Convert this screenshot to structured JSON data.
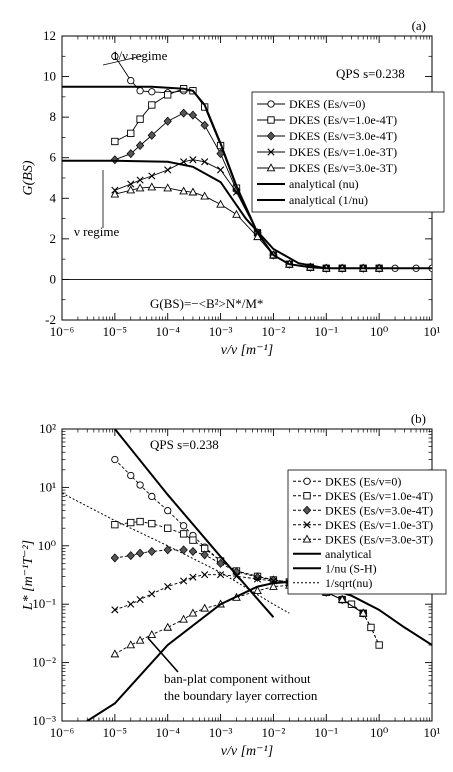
{
  "chart_data": [
    {
      "type": "line",
      "panel_label": "(a)",
      "xlabel": "ν/v [m⁻¹]",
      "ylabel": "G(BS)",
      "xscale": "log",
      "xlim": [
        1e-06,
        10
      ],
      "ylim": [
        -2,
        12
      ],
      "x_ticks": [
        "10⁻⁶",
        "10⁻⁵",
        "10⁻⁴",
        "10⁻³",
        "10⁻²",
        "10⁻¹",
        "10⁰",
        "10¹"
      ],
      "y_ticks": [
        "-2",
        "0",
        "2",
        "4",
        "6",
        "8",
        "10",
        "12"
      ],
      "annotations": [
        "QPS s=0.238",
        "1/ν regime",
        "ν regime",
        "G(BS)=−<B²>N*/M*"
      ],
      "legend_position": "right",
      "series": [
        {
          "name": "DKES (Es/v=0)",
          "marker": "circle",
          "x": [
            1e-05,
            2e-05,
            3e-05,
            5e-05,
            0.0001,
            0.0002,
            0.0003,
            0.0005,
            0.001,
            0.002,
            0.005,
            0.01,
            0.02,
            0.05,
            0.1,
            0.2,
            0.5,
            1,
            2,
            5,
            10
          ],
          "y": [
            11.0,
            9.8,
            9.3,
            9.25,
            9.2,
            9.3,
            9.3,
            8.5,
            6.6,
            4.5,
            2.3,
            1.2,
            0.75,
            0.6,
            0.55,
            0.55,
            0.55,
            0.55,
            0.55,
            0.55,
            0.55
          ]
        },
        {
          "name": "DKES (Es/v=1.0e-4T)",
          "marker": "square",
          "x": [
            1e-05,
            2e-05,
            3e-05,
            5e-05,
            0.0001,
            0.0002,
            0.0003,
            0.0005,
            0.001,
            0.002,
            0.005,
            0.01,
            0.02,
            0.05,
            0.1,
            0.2,
            0.5,
            1
          ],
          "y": [
            6.8,
            7.2,
            7.9,
            8.6,
            9.1,
            9.4,
            9.3,
            8.5,
            6.6,
            4.5,
            2.3,
            1.2,
            0.75,
            0.6,
            0.55,
            0.55,
            0.55,
            0.55
          ]
        },
        {
          "name": "DKES (Es/v=3.0e-4T)",
          "marker": "diamond",
          "x": [
            1e-05,
            2e-05,
            3e-05,
            5e-05,
            0.0001,
            0.0002,
            0.0003,
            0.0005,
            0.001,
            0.002,
            0.005,
            0.01,
            0.02,
            0.05,
            0.1,
            0.2,
            0.5,
            1
          ],
          "y": [
            5.9,
            6.2,
            6.6,
            7.1,
            7.8,
            8.2,
            8.1,
            7.6,
            6.2,
            4.4,
            2.3,
            1.2,
            0.75,
            0.6,
            0.55,
            0.55,
            0.55,
            0.55
          ]
        },
        {
          "name": "DKES (Es/v=1.0e-3T)",
          "marker": "cross",
          "x": [
            1e-05,
            2e-05,
            3e-05,
            5e-05,
            0.0001,
            0.0002,
            0.0003,
            0.0005,
            0.001,
            0.002,
            0.005,
            0.01,
            0.02,
            0.05,
            0.1,
            0.2,
            0.5,
            1
          ],
          "y": [
            4.4,
            4.7,
            4.9,
            5.1,
            5.4,
            5.8,
            5.9,
            5.8,
            5.4,
            4.3,
            2.3,
            1.2,
            0.75,
            0.6,
            0.55,
            0.55,
            0.55,
            0.55
          ]
        },
        {
          "name": "DKES (Es/v=3.0e-3T)",
          "marker": "triangle",
          "x": [
            1e-05,
            2e-05,
            3e-05,
            5e-05,
            0.0001,
            0.0002,
            0.0003,
            0.0005,
            0.001,
            0.002,
            0.005,
            0.01,
            0.02,
            0.05,
            0.1,
            0.2,
            0.5,
            1
          ],
          "y": [
            4.2,
            4.4,
            4.5,
            4.55,
            4.5,
            4.35,
            4.3,
            4.1,
            3.7,
            3.2,
            2.1,
            1.2,
            0.75,
            0.6,
            0.55,
            0.55,
            0.55,
            0.55
          ]
        },
        {
          "name": "analytical (nu)",
          "style": "solid",
          "x": [
            1e-06,
            1e-05,
            0.0001,
            0.0003,
            0.001,
            0.003,
            0.01,
            0.03,
            0.1,
            1,
            10
          ],
          "y": [
            5.85,
            5.85,
            5.8,
            5.55,
            4.8,
            3.0,
            1.5,
            0.8,
            0.55,
            0.55,
            0.55
          ]
        },
        {
          "name": "analytical (1/nu)",
          "style": "solid",
          "x": [
            1e-06,
            1e-05,
            5e-05,
            0.0001,
            0.0002,
            0.0003,
            0.0005,
            0.001,
            0.002,
            0.005,
            0.01,
            0.02,
            0.05,
            0.1
          ],
          "y": [
            9.5,
            9.5,
            9.5,
            9.45,
            9.4,
            9.3,
            8.6,
            6.7,
            4.6,
            2.3,
            1.2,
            0.75,
            0.6,
            0.55
          ]
        }
      ]
    },
    {
      "type": "line",
      "panel_label": "(b)",
      "xlabel": "ν/v [m⁻¹]",
      "ylabel": "L* [m⁻¹T⁻²]",
      "xscale": "log",
      "yscale": "log",
      "xlim": [
        1e-06,
        10
      ],
      "ylim": [
        0.001,
        100
      ],
      "x_ticks": [
        "10⁻⁶",
        "10⁻⁵",
        "10⁻⁴",
        "10⁻³",
        "10⁻²",
        "10⁻¹",
        "10⁰",
        "10¹"
      ],
      "y_ticks": [
        "10⁻³",
        "10⁻²",
        "10⁻¹",
        "10⁰",
        "10¹",
        "10²"
      ],
      "annotations": [
        "QPS s=0.238",
        "ban-plat component without",
        "the boundary layer correction"
      ],
      "legend_position": "right",
      "series": [
        {
          "name": "DKES (Es/v=0)",
          "marker": "circle",
          "x": [
            1e-05,
            2e-05,
            3e-05,
            5e-05,
            0.0001,
            0.0002,
            0.0003,
            0.0005,
            0.001,
            0.002,
            0.005,
            0.01,
            0.02,
            0.05,
            0.1,
            0.2,
            0.3,
            0.5,
            0.7,
            1
          ],
          "y": [
            30,
            16,
            11,
            7,
            4,
            2.2,
            1.5,
            0.95,
            0.55,
            0.37,
            0.3,
            0.26,
            0.24,
            0.2,
            0.16,
            0.12,
            0.1,
            0.07,
            0.04,
            0.02
          ]
        },
        {
          "name": "DKES (Es/v=1.0e-4T)",
          "marker": "square",
          "x": [
            1e-05,
            2e-05,
            3e-05,
            5e-05,
            0.0001,
            0.0002,
            0.0003,
            0.0005,
            0.001,
            0.002,
            0.005,
            0.01,
            0.02,
            0.05,
            0.1,
            0.2,
            0.3,
            0.5,
            0.7,
            1
          ],
          "y": [
            2.3,
            2.5,
            2.6,
            2.4,
            2.0,
            1.6,
            1.25,
            0.9,
            0.55,
            0.37,
            0.3,
            0.26,
            0.24,
            0.2,
            0.16,
            0.12,
            0.1,
            0.07,
            0.04,
            0.02
          ]
        },
        {
          "name": "DKES (Es/v=3.0e-4T)",
          "marker": "diamond",
          "x": [
            1e-05,
            2e-05,
            3e-05,
            5e-05,
            0.0001,
            0.0002,
            0.0003,
            0.0005,
            0.001,
            0.002,
            0.005,
            0.01,
            0.02,
            0.05,
            0.1,
            0.2,
            0.5
          ],
          "y": [
            0.62,
            0.68,
            0.75,
            0.8,
            0.85,
            0.85,
            0.8,
            0.7,
            0.5,
            0.36,
            0.29,
            0.26,
            0.24,
            0.2,
            0.16,
            0.12,
            0.07
          ]
        },
        {
          "name": "DKES (Es/v=1.0e-3T)",
          "marker": "cross",
          "x": [
            1e-05,
            2e-05,
            3e-05,
            5e-05,
            0.0001,
            0.0002,
            0.0003,
            0.0005,
            0.001,
            0.002,
            0.005,
            0.01,
            0.02,
            0.05,
            0.1,
            0.2,
            0.5
          ],
          "y": [
            0.08,
            0.1,
            0.12,
            0.15,
            0.2,
            0.25,
            0.29,
            0.32,
            0.32,
            0.3,
            0.27,
            0.25,
            0.23,
            0.2,
            0.16,
            0.12,
            0.07
          ]
        },
        {
          "name": "DKES (Es/v=3.0e-3T)",
          "marker": "triangle",
          "x": [
            1e-05,
            2e-05,
            3e-05,
            5e-05,
            0.0001,
            0.0002,
            0.0003,
            0.0005,
            0.001,
            0.002,
            0.005,
            0.01,
            0.02,
            0.05,
            0.1,
            0.2,
            0.5
          ],
          "y": [
            0.014,
            0.02,
            0.024,
            0.03,
            0.04,
            0.055,
            0.07,
            0.085,
            0.1,
            0.13,
            0.17,
            0.2,
            0.21,
            0.19,
            0.16,
            0.12,
            0.07
          ]
        },
        {
          "name": "analytical",
          "style": "solid",
          "x": [
            3e-06,
            1e-05,
            0.0001,
            0.001,
            0.005,
            0.01,
            0.02,
            0.05,
            0.1,
            0.3,
            1,
            3,
            10
          ],
          "y": [
            0.001,
            0.002,
            0.02,
            0.1,
            0.2,
            0.23,
            0.24,
            0.22,
            0.19,
            0.14,
            0.08,
            0.04,
            0.02
          ]
        },
        {
          "name": "1/nu (S-H)",
          "style": "solid",
          "x": [
            1e-05,
            0.0001,
            0.001,
            0.01
          ],
          "y": [
            100,
            7.5,
            0.65,
            0.06
          ]
        },
        {
          "name": "1/sqrt(nu)",
          "style": "dotted",
          "x": [
            1e-06,
            1e-05,
            0.0001,
            0.001,
            0.01,
            0.02
          ],
          "y": [
            8,
            2.7,
            1.0,
            0.35,
            0.1,
            0.07
          ]
        }
      ]
    }
  ]
}
